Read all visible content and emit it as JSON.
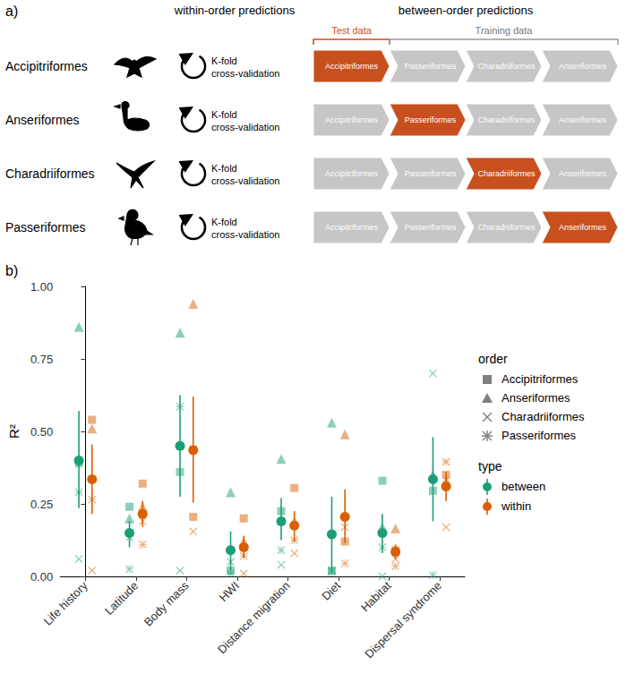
{
  "diagram": {
    "label": "a)",
    "headers": {
      "within": "within-order predictions",
      "between": "between-order predictions"
    },
    "test_label": "Test data",
    "training_label": "Training data",
    "rows": [
      {
        "order": "Accipitriformes",
        "method": "K-fold cross-validation",
        "test_index": 0
      },
      {
        "order": "Anseriformes",
        "method": "K-fold cross-validation",
        "test_index": 1
      },
      {
        "order": "Charadriiformes",
        "method": "K-fold cross-validation",
        "test_index": 2
      },
      {
        "order": "Passeriformes",
        "method": "K-fold cross-validation",
        "test_index": 3
      }
    ],
    "sequence": [
      "Accipitriformes",
      "Passeriformes",
      "Charadriiformes",
      "Anseriformes"
    ]
  },
  "chart_data": {
    "label": "b)",
    "type": "scatter",
    "y_label": "R²",
    "categories": [
      "Life history",
      "Latitude",
      "Body mass",
      "HWI",
      "Distance migration",
      "Diet",
      "Habitat",
      "Dispersal syndrome"
    ],
    "ylim": [
      0,
      1
    ],
    "yticks": [
      {
        "value": 0,
        "label": "0.00"
      },
      {
        "value": 0.25,
        "label": "0.25"
      },
      {
        "value": 0.5,
        "label": "0.50"
      },
      {
        "value": 0.75,
        "label": "0.75"
      },
      {
        "value": 1,
        "label": "1.00"
      }
    ],
    "grid": false,
    "legend": "right",
    "order_legend": {
      "title": "order",
      "color": "#7f7f7f",
      "items": [
        {
          "name": "Accipitriformes",
          "marker": "square"
        },
        {
          "name": "Anseriformes",
          "marker": "triangle"
        },
        {
          "name": "Charadriiformes",
          "marker": "cross"
        },
        {
          "name": "Passeriformes",
          "marker": "asterisk"
        }
      ]
    },
    "series_legend_title": "type",
    "series": [
      {
        "name": "between",
        "color": "#1b9e77",
        "values": [
          0.4,
          0.15,
          0.45,
          0.09,
          0.19,
          0.145,
          0.15,
          0.335
        ],
        "error_low": [
          0.235,
          0.1,
          0.275,
          0.02,
          0.125,
          0.02,
          0.08,
          0.19
        ],
        "error_high": [
          0.57,
          0.19,
          0.625,
          0.155,
          0.27,
          0.275,
          0.215,
          0.48
        ],
        "orders": {
          "Accipitriformes": [
            0.39,
            0.24,
            0.36,
            0.02,
            0.225,
            0.02,
            0.33,
            0.295
          ],
          "Anseriformes": [
            0.86,
            0.2,
            0.84,
            0.29,
            0.405,
            0.53,
            0.17,
            0.35
          ],
          "Charadriiformes": [
            0.06,
            0.135,
            0.02,
            0.05,
            0.04,
            0.02,
            0.0,
            0.7
          ],
          "Passeriformes": [
            0.29,
            0.025,
            0.585,
            0.01,
            0.09,
            0.015,
            0.1,
            0.005
          ]
        }
      },
      {
        "name": "within",
        "color": "#d95f02",
        "values": [
          0.335,
          0.215,
          0.435,
          0.1,
          0.175,
          0.205,
          0.085,
          0.31
        ],
        "error_low": [
          0.215,
          0.17,
          0.255,
          0.065,
          0.12,
          0.115,
          0.06,
          0.26
        ],
        "error_high": [
          0.455,
          0.26,
          0.62,
          0.14,
          0.225,
          0.3,
          0.11,
          0.36
        ],
        "orders": {
          "Accipitriformes": [
            0.54,
            0.32,
            0.205,
            0.2,
            0.305,
            0.12,
            0.09,
            0.35
          ],
          "Anseriformes": [
            0.51,
            0.24,
            0.94,
            0.12,
            0.19,
            0.49,
            0.165,
            0.33
          ],
          "Charadriiformes": [
            0.02,
            0.19,
            0.155,
            0.01,
            0.08,
            0.17,
            0.06,
            0.17
          ],
          "Passeriformes": [
            0.265,
            0.11,
            0.44,
            0.07,
            0.125,
            0.045,
            0.035,
            0.395
          ]
        }
      }
    ]
  }
}
